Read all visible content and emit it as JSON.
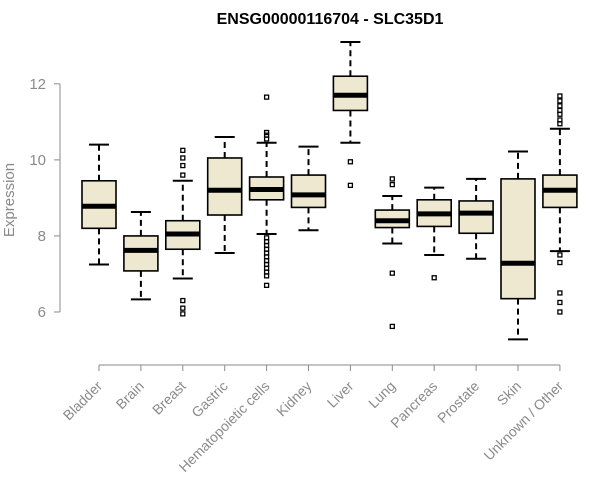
{
  "chart_data": {
    "type": "boxplot",
    "title": "ENSG00000116704 - SLC35D1",
    "xlabel": "",
    "ylabel": "Expression",
    "ylim": [
      5.0,
      13.1
    ],
    "yticks": [
      6,
      8,
      10,
      12
    ],
    "colors": {
      "box_fill": "#eee8d0",
      "box_stroke": "#000000",
      "axis": "#8a8a8a"
    },
    "categories": [
      "Bladder",
      "Brain",
      "Breast",
      "Gastric",
      "Hematopoietic cells",
      "Kidney",
      "Liver",
      "Lung",
      "Pancreas",
      "Prostate",
      "Skin",
      "Unknown / Other"
    ],
    "boxes": [
      {
        "label": "Bladder",
        "whisker_low": 7.25,
        "q1": 8.2,
        "median": 8.78,
        "q3": 9.45,
        "whisker_high": 10.4,
        "outliers": []
      },
      {
        "label": "Brain",
        "whisker_low": 6.33,
        "q1": 7.08,
        "median": 7.62,
        "q3": 8.0,
        "whisker_high": 8.63,
        "outliers": []
      },
      {
        "label": "Breast",
        "whisker_low": 6.88,
        "q1": 7.65,
        "median": 8.05,
        "q3": 8.4,
        "whisker_high": 9.45,
        "outliers": [
          5.95,
          6.1,
          6.3,
          9.6,
          9.85,
          10.05,
          10.25
        ]
      },
      {
        "label": "Gastric",
        "whisker_low": 7.55,
        "q1": 8.55,
        "median": 9.2,
        "q3": 10.05,
        "whisker_high": 10.6,
        "outliers": []
      },
      {
        "label": "Hematopoietic cells",
        "whisker_low": 8.05,
        "q1": 8.95,
        "median": 9.22,
        "q3": 9.55,
        "whisker_high": 10.45,
        "outliers": [
          6.7,
          6.95,
          7.05,
          7.15,
          7.25,
          7.35,
          7.45,
          7.55,
          7.65,
          7.75,
          7.85,
          7.95,
          10.55,
          10.65,
          10.72,
          11.65
        ]
      },
      {
        "label": "Kidney",
        "whisker_low": 8.15,
        "q1": 8.75,
        "median": 9.08,
        "q3": 9.6,
        "whisker_high": 10.35,
        "outliers": []
      },
      {
        "label": "Liver",
        "whisker_low": 10.45,
        "q1": 11.3,
        "median": 11.7,
        "q3": 12.2,
        "whisker_high": 13.1,
        "outliers": [
          9.33,
          9.95
        ]
      },
      {
        "label": "Lung",
        "whisker_low": 7.8,
        "q1": 8.22,
        "median": 8.4,
        "q3": 8.68,
        "whisker_high": 9.05,
        "outliers": [
          5.62,
          7.02,
          9.35,
          9.5
        ]
      },
      {
        "label": "Pancreas",
        "whisker_low": 7.5,
        "q1": 8.25,
        "median": 8.58,
        "q3": 8.95,
        "whisker_high": 9.27,
        "outliers": [
          6.9
        ]
      },
      {
        "label": "Prostate",
        "whisker_low": 7.4,
        "q1": 8.07,
        "median": 8.6,
        "q3": 8.92,
        "whisker_high": 9.5,
        "outliers": []
      },
      {
        "label": "Skin",
        "whisker_low": 5.28,
        "q1": 6.35,
        "median": 7.28,
        "q3": 9.5,
        "whisker_high": 10.22,
        "outliers": []
      },
      {
        "label": "Unknown / Other",
        "whisker_low": 7.6,
        "q1": 8.75,
        "median": 9.2,
        "q3": 9.6,
        "whisker_high": 10.82,
        "outliers": [
          6.0,
          6.25,
          6.5,
          7.3,
          7.5,
          10.95,
          11.05,
          11.2,
          11.3,
          11.42,
          11.55,
          11.68
        ]
      }
    ]
  }
}
